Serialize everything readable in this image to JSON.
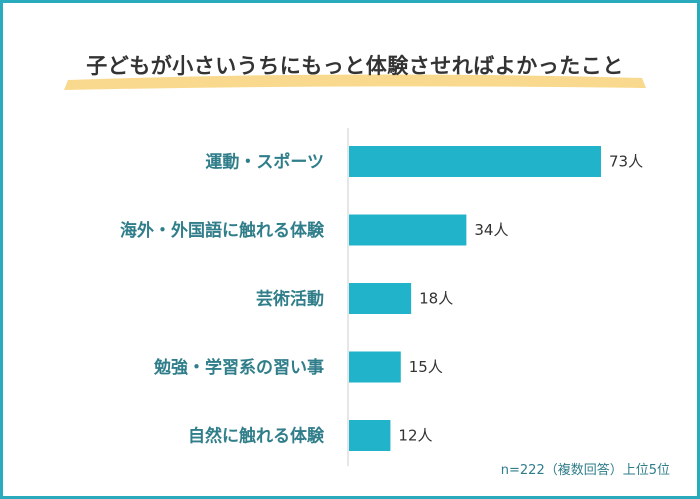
{
  "colors": {
    "frame": "#29aabd",
    "bar": "#21b3c9",
    "label_text": "#2f7e8a",
    "value_text": "#333333",
    "title_highlight": "#f8d27a"
  },
  "chart_data": {
    "type": "bar",
    "orientation": "horizontal",
    "title": "子どもが小さいうちにもっと体験させればよかったこと",
    "categories": [
      "運動・スポーツ",
      "海外・外国語に触れる体験",
      "芸術活動",
      "勉強・学習系の習い事",
      "自然に触れる体験"
    ],
    "values": [
      73,
      34,
      18,
      15,
      12
    ],
    "value_labels": [
      "73人",
      "34人",
      "18人",
      "15人",
      "12人"
    ],
    "unit": "人",
    "grid": false,
    "note": "n=222（複数回答）上位5位"
  }
}
